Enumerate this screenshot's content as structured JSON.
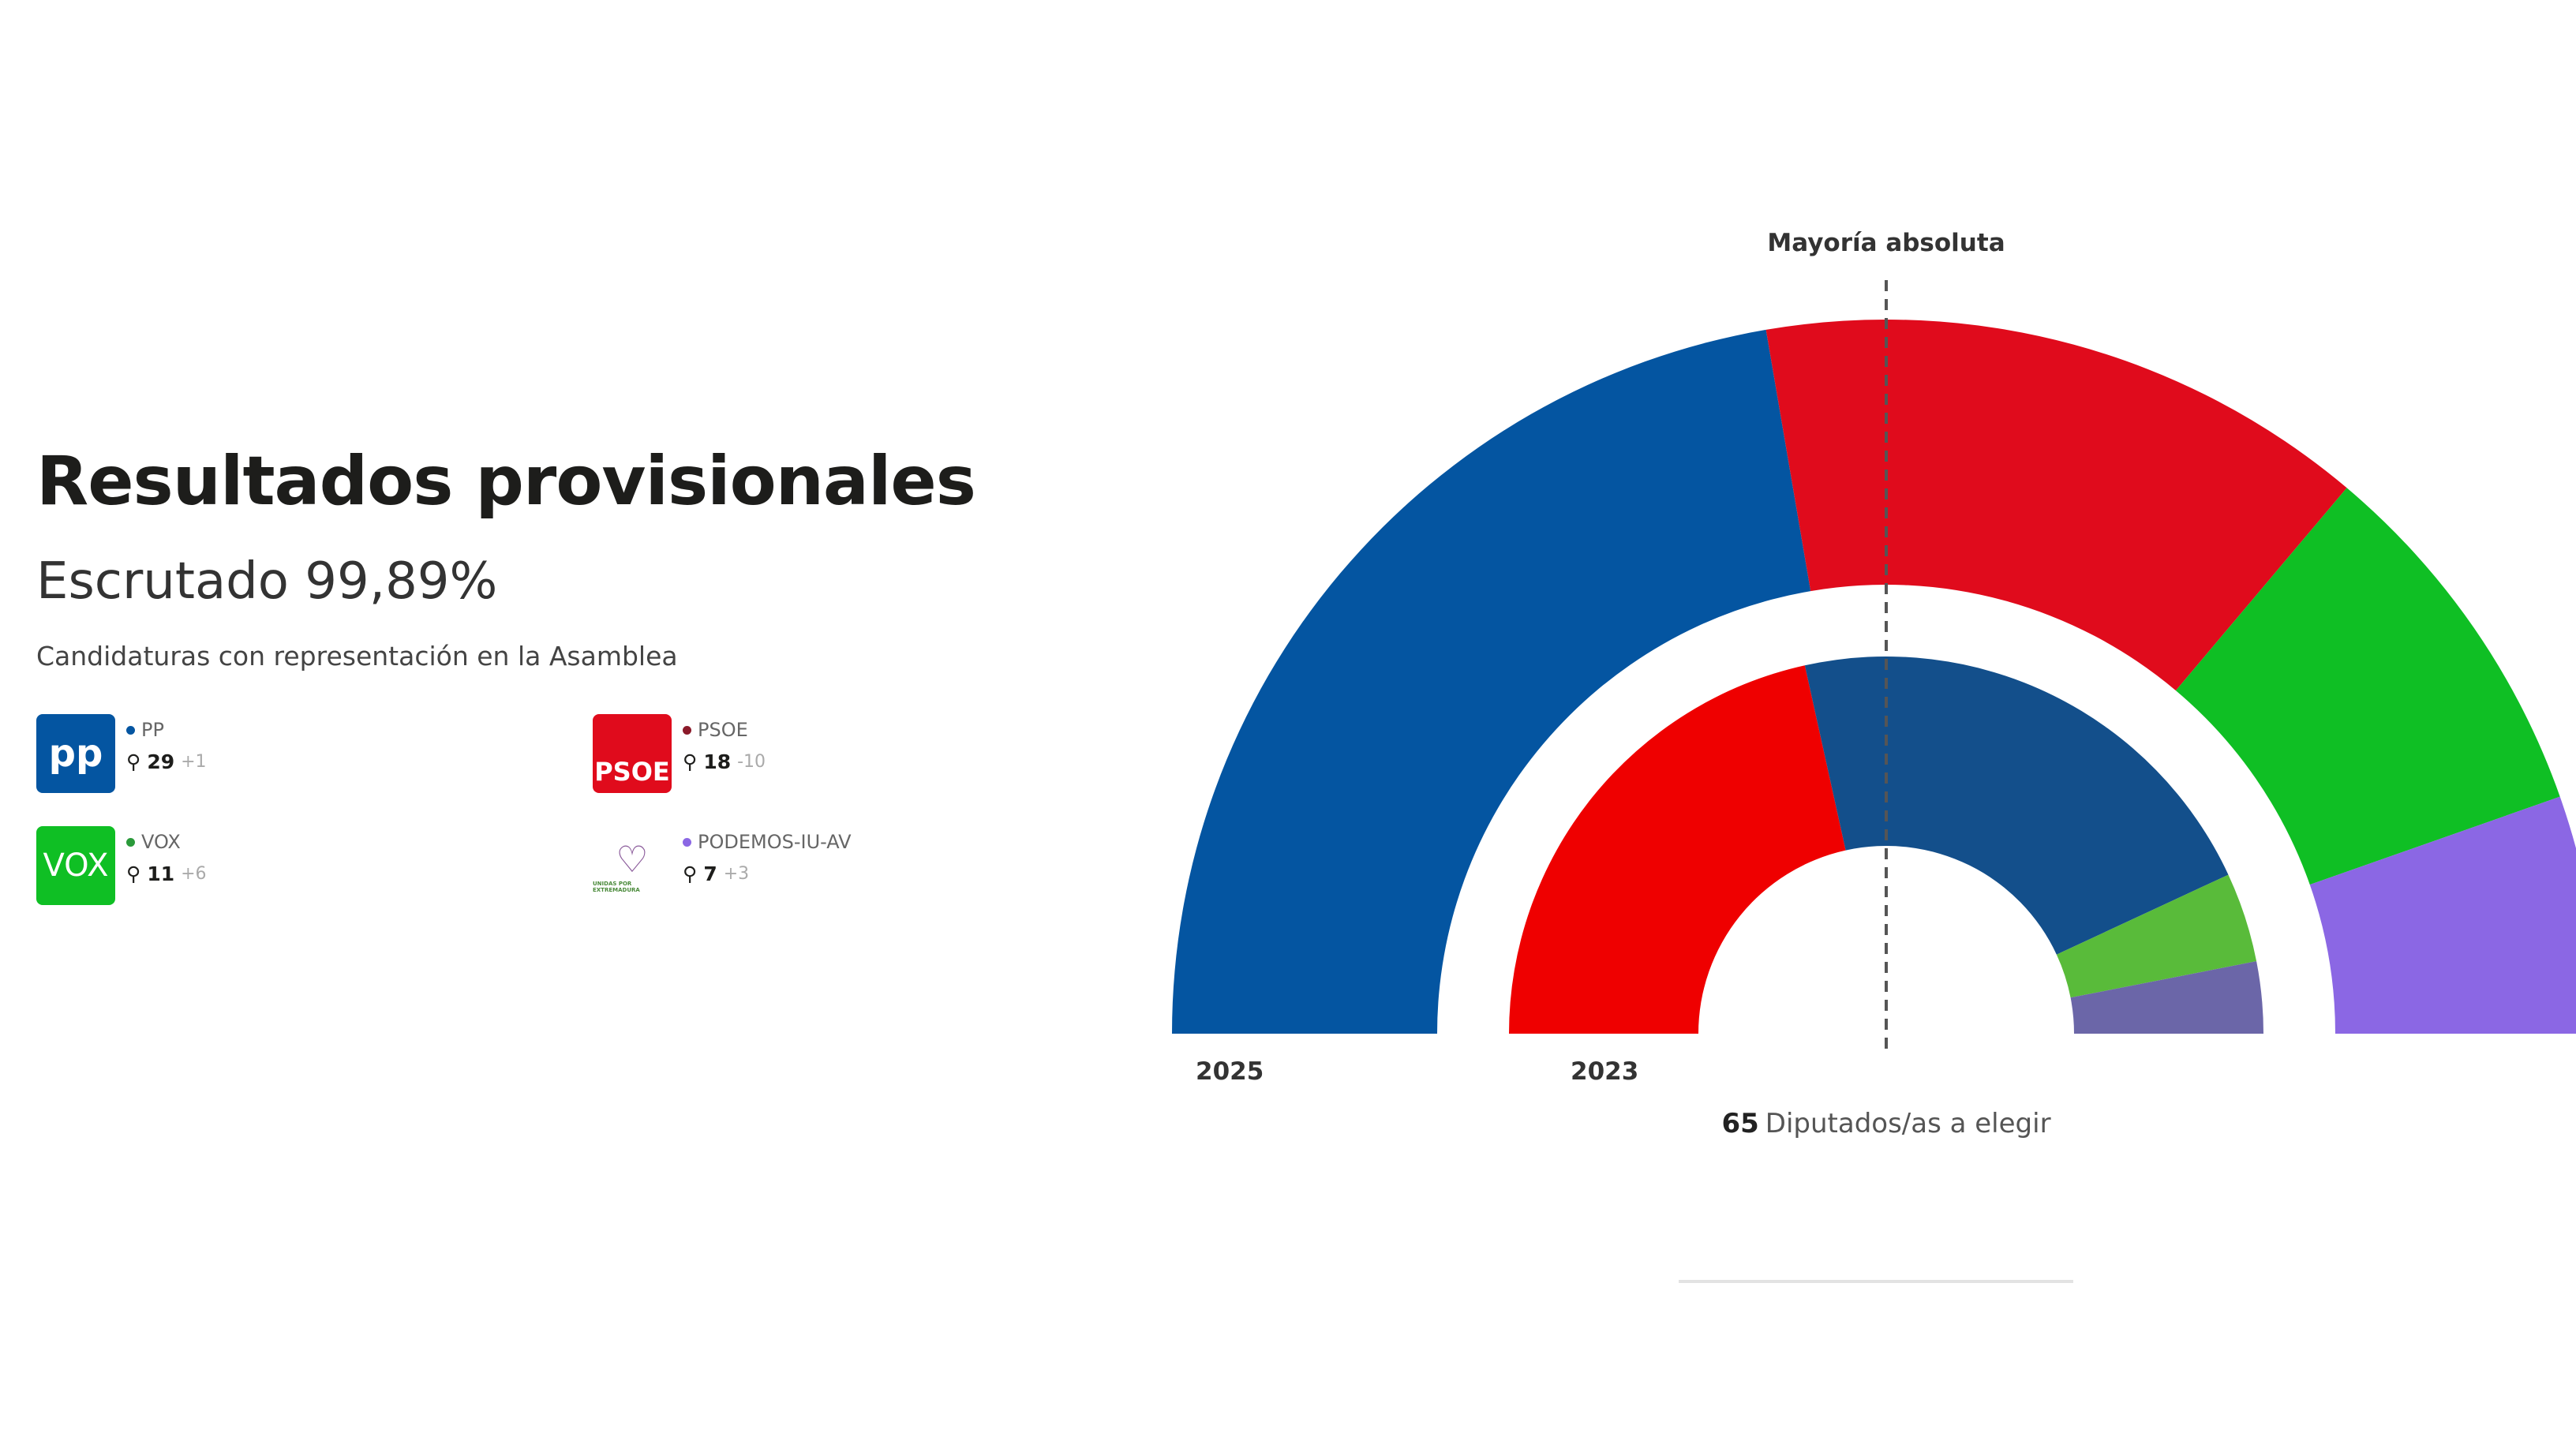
{
  "title": "Resultados provisionales",
  "scrutiny": "Escrutado 99,89%",
  "subtitle": "Candidaturas con representación en la Asamblea",
  "parties": [
    {
      "name": "PP",
      "logo_text": "pp",
      "seats": "29",
      "diff": "+1",
      "color": "#0455a1"
    },
    {
      "name": "PSOE",
      "logo_text": "PSOE",
      "seats": "18",
      "diff": "-10",
      "color": "#e00b1c"
    },
    {
      "name": "VOX",
      "logo_text": "VOX",
      "seats": "11",
      "diff": "+6",
      "color": "#0fbf24"
    },
    {
      "name": "PODEMOS-IU-AV",
      "logo_text": "UNIDAS POR EXTREMADURA",
      "seats": "7",
      "diff": "+3",
      "color": "#8b67e4"
    }
  ],
  "chart_data": {
    "type": "parliament-donut",
    "total_seats": 65,
    "majority_label": "Mayoría absoluta",
    "majority": 33,
    "footer_number": "65",
    "footer_text": "Diputados/as a elegir",
    "series": [
      {
        "name": "2025",
        "segments": [
          {
            "party": "PP",
            "seats": 29,
            "color": "#0455a1"
          },
          {
            "party": "PSOE",
            "seats": 18,
            "color": "#e00b1c"
          },
          {
            "party": "VOX",
            "seats": 11,
            "color": "#0fbf24"
          },
          {
            "party": "PODEMOS-IU-AV",
            "seats": 7,
            "color": "#8b67e4"
          }
        ]
      },
      {
        "name": "2023",
        "segments": [
          {
            "party": "PSOE",
            "seats": 28,
            "color": "#ef0000"
          },
          {
            "party": "PP",
            "seats": 28,
            "color": "#134f8b"
          },
          {
            "party": "VOX",
            "seats": 5,
            "color": "#59bb3a"
          },
          {
            "party": "PODEMOS-IU-AV",
            "seats": 4,
            "color": "#6b66a8"
          }
        ]
      }
    ]
  }
}
